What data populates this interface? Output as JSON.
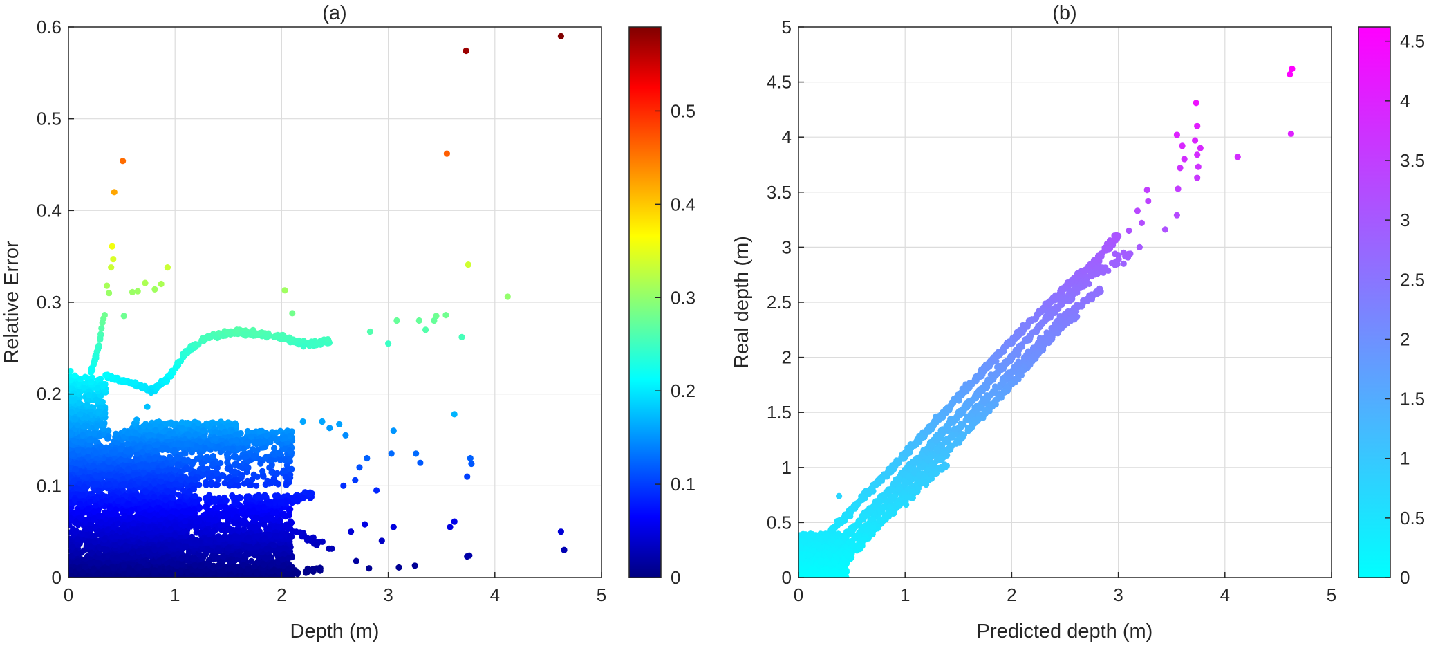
{
  "chart_data": [
    {
      "type": "scatter",
      "title": "(a)",
      "xlabel": "Depth (m)",
      "ylabel": "Relative Error",
      "xlim": [
        0,
        5
      ],
      "ylim": [
        0,
        0.6
      ],
      "xticks": [
        "0",
        "1",
        "2",
        "3",
        "4",
        "5"
      ],
      "yticks": [
        "0",
        "0.1",
        "0.2",
        "0.3",
        "0.4",
        "0.5",
        "0.6"
      ],
      "grid": true,
      "colormap": "jet",
      "color_by": "y",
      "colorbar": {
        "range": [
          0,
          0.59
        ],
        "ticks": [
          "0",
          "0.1",
          "0.2",
          "0.3",
          "0.4",
          "0.5"
        ]
      },
      "points": [
        [
          4.62,
          0.59
        ],
        [
          3.73,
          0.574
        ],
        [
          0.51,
          0.454
        ],
        [
          3.55,
          0.462
        ],
        [
          0.43,
          0.42
        ],
        [
          0.41,
          0.361
        ],
        [
          3.75,
          0.341
        ],
        [
          0.42,
          0.347
        ],
        [
          0.4,
          0.338
        ],
        [
          0.93,
          0.338
        ],
        [
          4.12,
          0.306
        ],
        [
          0.36,
          0.318
        ],
        [
          0.38,
          0.31
        ],
        [
          0.72,
          0.321
        ],
        [
          0.65,
          0.312
        ],
        [
          0.6,
          0.311
        ],
        [
          0.81,
          0.314
        ],
        [
          0.87,
          0.32
        ],
        [
          2.03,
          0.313
        ],
        [
          0.34,
          0.286
        ],
        [
          0.52,
          0.285
        ],
        [
          2.1,
          0.288
        ],
        [
          3.45,
          0.285
        ],
        [
          3.54,
          0.286
        ],
        [
          3.69,
          0.262
        ],
        [
          3.62,
          0.178
        ],
        [
          3.58,
          0.055
        ],
        [
          3.62,
          0.061
        ],
        [
          3.74,
          0.023
        ],
        [
          3.76,
          0.024
        ],
        [
          4.62,
          0.05
        ],
        [
          4.65,
          0.03
        ],
        [
          3.74,
          0.11
        ],
        [
          3.77,
          0.13
        ],
        [
          3.78,
          0.124
        ],
        [
          2.82,
          0.01
        ],
        [
          2.7,
          0.018
        ],
        [
          3.1,
          0.011
        ],
        [
          3.25,
          0.013
        ],
        [
          2.65,
          0.05
        ],
        [
          2.78,
          0.058
        ],
        [
          2.94,
          0.04
        ],
        [
          3.05,
          0.055
        ],
        [
          2.8,
          0.13
        ],
        [
          3.05,
          0.16
        ],
        [
          3.3,
          0.125
        ],
        [
          2.73,
          0.12
        ],
        [
          2.45,
          0.163
        ],
        [
          2.6,
          0.155
        ],
        [
          2.58,
          0.1
        ],
        [
          2.69,
          0.106
        ],
        [
          2.89,
          0.095
        ],
        [
          2.2,
          0.17
        ],
        [
          2.38,
          0.17
        ],
        [
          2.54,
          0.167
        ],
        [
          3.03,
          0.135
        ],
        [
          3.26,
          0.135
        ],
        [
          3.35,
          0.27
        ],
        [
          3.43,
          0.28
        ],
        [
          3.08,
          0.28
        ],
        [
          3.29,
          0.28
        ],
        [
          3.0,
          0.255
        ],
        [
          2.83,
          0.268
        ],
        [
          0.02,
          0.225
        ],
        [
          0.06,
          0.22
        ],
        [
          0.03,
          0.18
        ],
        [
          0.05,
          0.193
        ],
        [
          0.45,
          0.045
        ],
        [
          0.64,
          0.172
        ],
        [
          0.74,
          0.186
        ]
      ],
      "bands": [
        {
          "x0": 0.0,
          "x1": 1.0,
          "y0": 0.0,
          "y1": 0.13,
          "n": 1400
        },
        {
          "x0": 0.0,
          "x1": 2.1,
          "y0": 0.0,
          "y1": 0.012,
          "n": 700
        },
        {
          "x0": 0.2,
          "x1": 2.1,
          "y0": 0.005,
          "y1": 0.04,
          "n": 700
        },
        {
          "x0": 0.3,
          "x1": 2.1,
          "y0": 0.03,
          "y1": 0.09,
          "n": 900
        },
        {
          "x0": 0.0,
          "x1": 2.1,
          "y0": 0.1,
          "y1": 0.16,
          "n": 800
        },
        {
          "x0": 0.0,
          "x1": 0.35,
          "y0": 0.12,
          "y1": 0.22,
          "n": 350
        },
        {
          "x0": 0.0,
          "x1": 0.15,
          "y0": 0.08,
          "y1": 0.195,
          "n": 200
        },
        {
          "x0": 0.6,
          "x1": 1.6,
          "y0": 0.14,
          "y1": 0.17,
          "n": 300
        },
        {
          "x0": 0.7,
          "x1": 1.2,
          "y0": 0.06,
          "y1": 0.11,
          "n": 250
        }
      ],
      "curves": [
        {
          "xy": [
            [
              0.35,
              0.22
            ],
            [
              0.6,
              0.212
            ],
            [
              0.8,
              0.204
            ],
            [
              0.95,
              0.22
            ],
            [
              1.1,
              0.245
            ],
            [
              1.3,
              0.262
            ],
            [
              1.6,
              0.268
            ],
            [
              2.0,
              0.262
            ],
            [
              2.25,
              0.254
            ],
            [
              2.45,
              0.258
            ]
          ],
          "n": 320,
          "jitter": 0.004
        },
        {
          "xy": [
            [
              0.2,
              0.22
            ],
            [
              0.28,
              0.25
            ],
            [
              0.31,
              0.27
            ],
            [
              0.33,
              0.285
            ]
          ],
          "n": 30,
          "jitter": 0.004
        },
        {
          "xy": [
            [
              0.4,
              0.02
            ],
            [
              1.0,
              0.035
            ],
            [
              1.5,
              0.042
            ],
            [
              2.1,
              0.045
            ]
          ],
          "n": 300,
          "jitter": 0.005
        },
        {
          "xy": [
            [
              0.6,
              0.05
            ],
            [
              1.2,
              0.06
            ],
            [
              2.0,
              0.083
            ],
            [
              2.3,
              0.092
            ]
          ],
          "n": 300,
          "jitter": 0.006
        },
        {
          "xy": [
            [
              0.0,
              0.135
            ],
            [
              0.6,
              0.14
            ],
            [
              1.5,
              0.148
            ],
            [
              2.1,
              0.152
            ]
          ],
          "n": 250,
          "jitter": 0.008
        },
        {
          "xy": [
            [
              2.1,
              0.005
            ],
            [
              2.4,
              0.01
            ]
          ],
          "n": 20,
          "jitter": 0.004
        },
        {
          "xy": [
            [
              2.1,
              0.05
            ],
            [
              2.5,
              0.03
            ]
          ],
          "n": 20,
          "jitter": 0.006
        }
      ]
    },
    {
      "type": "scatter",
      "title": "(b)",
      "xlabel": "Predicted depth (m)",
      "ylabel": "Real depth (m)",
      "xlim": [
        0,
        5
      ],
      "ylim": [
        0,
        5
      ],
      "xticks": [
        "0",
        "1",
        "2",
        "3",
        "4",
        "5"
      ],
      "yticks": [
        "0",
        "0.5",
        "1",
        "1.5",
        "2",
        "2.5",
        "3",
        "3.5",
        "4",
        "4.5",
        "5"
      ],
      "grid": true,
      "colormap": "cool",
      "color_by": "y",
      "colorbar": {
        "range": [
          0,
          4.62
        ],
        "ticks": [
          "0",
          "0.5",
          "1",
          "1.5",
          "2",
          "2.5",
          "3",
          "3.5",
          "4",
          "4.5"
        ]
      },
      "points": [
        [
          4.63,
          4.62
        ],
        [
          4.61,
          4.57
        ],
        [
          4.62,
          4.03
        ],
        [
          4.12,
          3.82
        ],
        [
          3.73,
          4.31
        ],
        [
          3.74,
          4.1
        ],
        [
          3.55,
          4.02
        ],
        [
          3.72,
          3.97
        ],
        [
          3.77,
          3.9
        ],
        [
          3.6,
          3.92
        ],
        [
          3.62,
          3.8
        ],
        [
          3.74,
          3.84
        ],
        [
          3.75,
          3.73
        ],
        [
          3.58,
          3.72
        ],
        [
          3.74,
          3.63
        ],
        [
          3.56,
          3.53
        ],
        [
          3.55,
          3.29
        ],
        [
          3.44,
          3.16
        ],
        [
          3.27,
          3.52
        ],
        [
          3.28,
          3.42
        ],
        [
          3.18,
          3.33
        ],
        [
          3.22,
          3.22
        ],
        [
          3.1,
          3.15
        ],
        [
          3.2,
          3.0
        ],
        [
          3.05,
          2.85
        ],
        [
          2.97,
          2.94
        ],
        [
          3.05,
          2.95
        ],
        [
          0.38,
          0.74
        ],
        [
          0.45,
          0.05
        ],
        [
          0.42,
          0.02
        ],
        [
          0.32,
          0.03
        ],
        [
          0.23,
          0.02
        ],
        [
          0.03,
          0.02
        ],
        [
          0.05,
          0.0
        ],
        [
          0.1,
          0.04
        ]
      ],
      "bands": [
        {
          "x0": 0.0,
          "x1": 0.45,
          "y0": 0.0,
          "y1": 0.4,
          "n": 500
        },
        {
          "x0": 0.0,
          "x1": 0.12,
          "y0": 0.0,
          "y1": 0.22,
          "n": 120
        }
      ],
      "curves": [
        {
          "xy": [
            [
              0.0,
              0.12
            ],
            [
              1.0,
              1.12
            ],
            [
              1.8,
              1.95
            ],
            [
              2.2,
              2.35
            ],
            [
              2.5,
              2.63
            ],
            [
              2.8,
              2.88
            ],
            [
              3.0,
              3.12
            ]
          ],
          "n": 650,
          "jitter": 0.025
        },
        {
          "xy": [
            [
              0.1,
              0.02
            ],
            [
              1.0,
              0.95
            ],
            [
              1.9,
              1.9
            ],
            [
              2.4,
              2.43
            ],
            [
              2.7,
              2.72
            ],
            [
              2.85,
              2.82
            ]
          ],
          "n": 650,
          "jitter": 0.025
        },
        {
          "xy": [
            [
              0.2,
              0.0
            ],
            [
              1.0,
              0.85
            ],
            [
              1.9,
              1.76
            ],
            [
              2.5,
              2.38
            ],
            [
              2.85,
              2.62
            ]
          ],
          "n": 550,
          "jitter": 0.025
        },
        {
          "xy": [
            [
              0.3,
              0.0
            ],
            [
              1.0,
              0.75
            ],
            [
              1.9,
              1.65
            ],
            [
              2.4,
              2.22
            ],
            [
              2.6,
              2.38
            ]
          ],
          "n": 450,
          "jitter": 0.025
        },
        {
          "xy": [
            [
              0.4,
              0.15
            ],
            [
              0.7,
              0.45
            ],
            [
              1.0,
              0.7
            ],
            [
              1.4,
              1.05
            ]
          ],
          "n": 120,
          "jitter": 0.03
        },
        {
          "xy": [
            [
              2.5,
              2.5
            ],
            [
              2.8,
              2.75
            ],
            [
              3.1,
              2.95
            ]
          ],
          "n": 40,
          "jitter": 0.04
        }
      ]
    }
  ]
}
